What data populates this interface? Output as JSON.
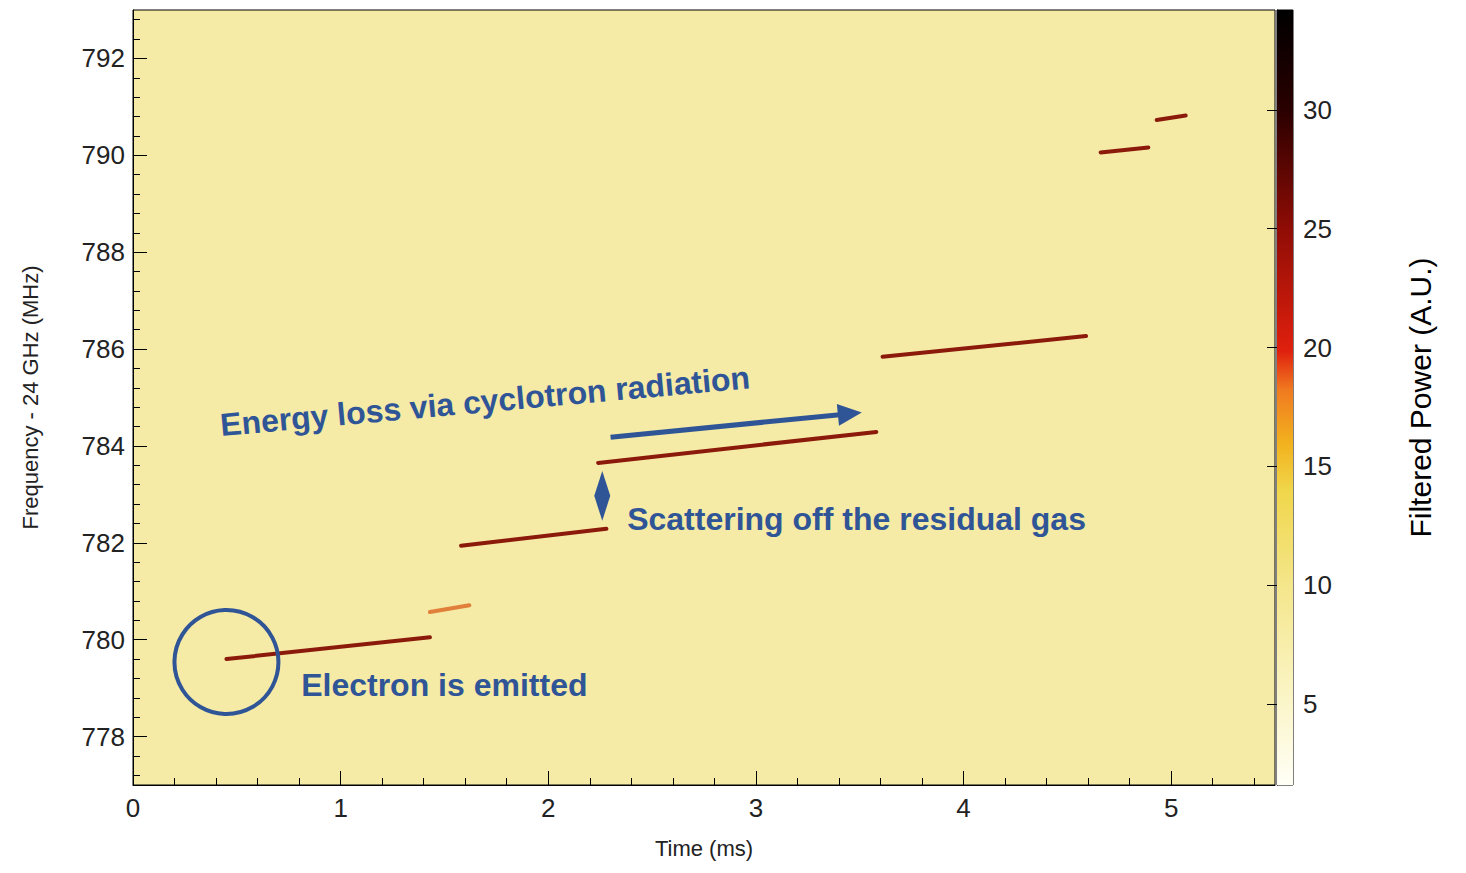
{
  "chart_data": {
    "type": "line",
    "xlabel": "Time (ms)",
    "ylabel": "Frequency - 24 GHz (MHz)",
    "xlim": [
      0,
      5.5
    ],
    "xticks": [
      0,
      1,
      2,
      3,
      4,
      5
    ],
    "ylim": [
      777,
      793
    ],
    "yticks": [
      778,
      780,
      782,
      784,
      786,
      788,
      790,
      792
    ],
    "grid": false,
    "series": [
      {
        "color": "#8b1a0a",
        "x": [
          0.45,
          1.43
        ],
        "values": [
          779.6,
          780.05
        ]
      },
      {
        "color": "#e0803a",
        "x": [
          1.43,
          1.62
        ],
        "values": [
          780.57,
          780.71
        ]
      },
      {
        "color": "#8b1a0a",
        "x": [
          1.58,
          2.28
        ],
        "values": [
          781.94,
          782.29
        ]
      },
      {
        "color": "#8b1a0a",
        "x": [
          2.24,
          3.58
        ],
        "values": [
          783.65,
          784.29
        ]
      },
      {
        "color": "#8b1a0a",
        "x": [
          3.61,
          4.59
        ],
        "values": [
          785.84,
          786.27
        ]
      },
      {
        "color": "#8b1a0a",
        "x": [
          4.66,
          4.89
        ],
        "values": [
          790.06,
          790.16
        ]
      },
      {
        "color": "#8b1a0a",
        "x": [
          4.93,
          5.07
        ],
        "values": [
          790.73,
          790.82
        ]
      }
    ],
    "colorbar": {
      "range": [
        1.6,
        34.2
      ],
      "ticks": [
        5,
        10,
        15,
        20,
        25,
        30
      ],
      "label": "Filtered Power (A.U.)"
    },
    "annotations": [
      {
        "text": "Electron is emitted",
        "x": 0.81,
        "y": 779.06
      },
      {
        "text": "Scattering off the residual gas",
        "x": 2.38,
        "y": 782.49
      },
      {
        "text": "Energy loss via cyclotron radiation",
        "x": 0.42,
        "y": 784.43,
        "arrow_x": [
          2.3,
          3.51
        ],
        "arrow_y": [
          784.18,
          784.69
        ]
      }
    ]
  }
}
